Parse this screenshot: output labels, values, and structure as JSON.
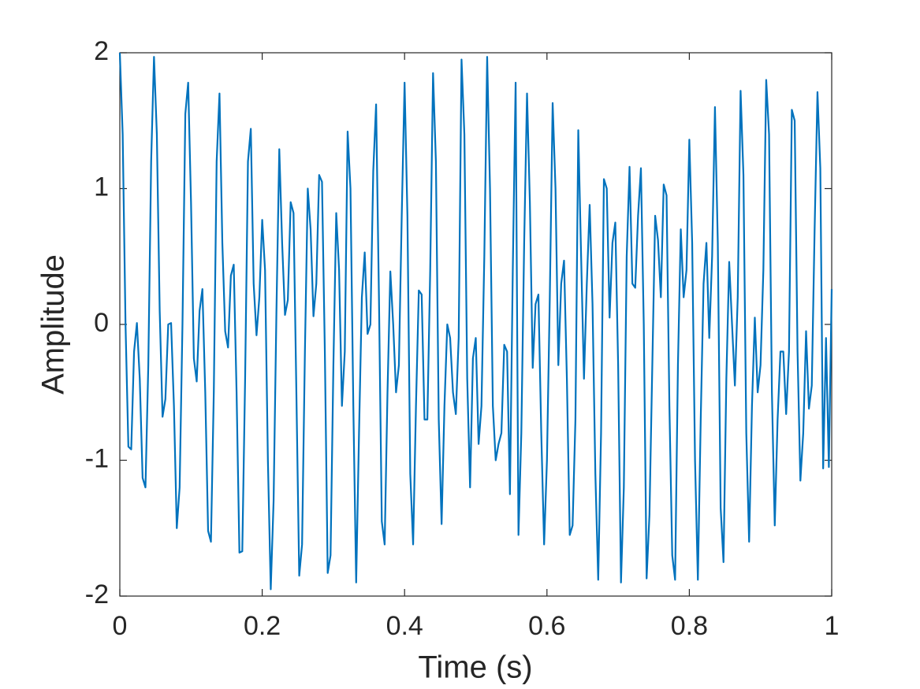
{
  "chart_data": {
    "type": "line",
    "xlabel": "Time (s)",
    "ylabel": "Amplitude",
    "color": "#0072bd",
    "xlim": [
      0,
      1
    ],
    "ylim": [
      -2,
      2
    ],
    "xticks": [
      0,
      0.2,
      0.4,
      0.6,
      0.8,
      1
    ],
    "yticks": [
      -2,
      -1,
      0,
      1,
      2
    ],
    "x": [
      0,
      0.004,
      0.008,
      0.012,
      0.016,
      0.02,
      0.024,
      0.028,
      0.032,
      0.036,
      0.04,
      0.044,
      0.048,
      0.052,
      0.056,
      0.06,
      0.064,
      0.068,
      0.072,
      0.076,
      0.08,
      0.084,
      0.088,
      0.092,
      0.096,
      0.1,
      0.104,
      0.108,
      0.112,
      0.116,
      0.12,
      0.124,
      0.128,
      0.132,
      0.136,
      0.14,
      0.144,
      0.148,
      0.152,
      0.156,
      0.16,
      0.164,
      0.168,
      0.172,
      0.176,
      0.18,
      0.184,
      0.188,
      0.192,
      0.196,
      0.2,
      0.204,
      0.208,
      0.212,
      0.216,
      0.22,
      0.224,
      0.228,
      0.232,
      0.236,
      0.24,
      0.244,
      0.248,
      0.252,
      0.256,
      0.26,
      0.264,
      0.268,
      0.272,
      0.276,
      0.28,
      0.284,
      0.288,
      0.292,
      0.296,
      0.3,
      0.304,
      0.308,
      0.312,
      0.316,
      0.32,
      0.324,
      0.328,
      0.332,
      0.336,
      0.34,
      0.344,
      0.348,
      0.352,
      0.356,
      0.36,
      0.364,
      0.368,
      0.372,
      0.376,
      0.38,
      0.384,
      0.388,
      0.392,
      0.396,
      0.4,
      0.404,
      0.408,
      0.412,
      0.416,
      0.42,
      0.424,
      0.428,
      0.432,
      0.436,
      0.44,
      0.444,
      0.448,
      0.452,
      0.456,
      0.46,
      0.464,
      0.468,
      0.472,
      0.476,
      0.48,
      0.484,
      0.488,
      0.492,
      0.496,
      0.5,
      0.504,
      0.508,
      0.512,
      0.516,
      0.52,
      0.524,
      0.528,
      0.532,
      0.536,
      0.54,
      0.544,
      0.548,
      0.552,
      0.556,
      0.56,
      0.564,
      0.568,
      0.572,
      0.576,
      0.58,
      0.584,
      0.588,
      0.592,
      0.596,
      0.6,
      0.604,
      0.608,
      0.612,
      0.616,
      0.62,
      0.624,
      0.628,
      0.632,
      0.636,
      0.64,
      0.644,
      0.648,
      0.652,
      0.656,
      0.66,
      0.664,
      0.668,
      0.672,
      0.676,
      0.68,
      0.684,
      0.688,
      0.692,
      0.696,
      0.7,
      0.704,
      0.708,
      0.712,
      0.716,
      0.72,
      0.724,
      0.728,
      0.732,
      0.736,
      0.74,
      0.744,
      0.748,
      0.752,
      0.756,
      0.76,
      0.764,
      0.768,
      0.772,
      0.776,
      0.78,
      0.784,
      0.788,
      0.792,
      0.796,
      0.8,
      0.804,
      0.808,
      0.812,
      0.816,
      0.82,
      0.824,
      0.828,
      0.832,
      0.836,
      0.84,
      0.844,
      0.848,
      0.852,
      0.856,
      0.86,
      0.864,
      0.868,
      0.872,
      0.876,
      0.88,
      0.884,
      0.888,
      0.892,
      0.896,
      0.9,
      0.904,
      0.908,
      0.912,
      0.916,
      0.92,
      0.924,
      0.928,
      0.932,
      0.936,
      0.94,
      0.944,
      0.948,
      0.952,
      0.956,
      0.96,
      0.964,
      0.968,
      0.972,
      0.976,
      0.98,
      0.984,
      0.988,
      0.992,
      0.996,
      1
    ],
    "values": [
      2.0,
      1.4,
      0.0,
      -0.9,
      -0.92,
      -0.2,
      0.01,
      -0.4,
      -1.13,
      -1.2,
      -0.3,
      1.2,
      1.97,
      1.4,
      0.1,
      -0.68,
      -0.55,
      0.0,
      0.01,
      -0.6,
      -1.5,
      -1.2,
      0.0,
      1.55,
      1.78,
      0.9,
      -0.25,
      -0.42,
      0.1,
      0.26,
      -0.5,
      -1.52,
      -1.6,
      -0.5,
      1.2,
      1.7,
      0.6,
      -0.05,
      -0.17,
      0.36,
      0.44,
      -0.5,
      -1.68,
      -1.67,
      -0.4,
      1.2,
      1.44,
      0.3,
      -0.08,
      0.2,
      0.77,
      0.4,
      -1.0,
      -1.95,
      -1.3,
      0.1,
      1.29,
      0.6,
      0.07,
      0.18,
      0.9,
      0.82,
      -0.5,
      -1.85,
      -1.62,
      -0.2,
      1.0,
      0.7,
      0.06,
      0.3,
      1.1,
      1.05,
      -0.2,
      -1.83,
      -1.7,
      -0.3,
      0.82,
      0.4,
      -0.6,
      -0.2,
      1.42,
      1.0,
      -0.6,
      -1.9,
      -0.8,
      0.2,
      0.53,
      -0.07,
      0.0,
      1.13,
      1.62,
      0.2,
      -1.45,
      -1.62,
      -0.5,
      0.39,
      0.0,
      -0.5,
      -0.3,
      0.8,
      1.78,
      0.8,
      -1.1,
      -1.62,
      -0.6,
      0.25,
      0.22,
      -0.7,
      -0.7,
      0.4,
      1.85,
      1.2,
      -0.7,
      -1.47,
      -0.6,
      0.0,
      -0.1,
      -0.5,
      -0.66,
      -0.1,
      1.95,
      1.4,
      -0.4,
      -1.2,
      -0.25,
      -0.1,
      -0.88,
      -0.6,
      0.5,
      1.97,
      1.0,
      -0.6,
      -1.0,
      -0.88,
      -0.8,
      -0.15,
      -0.2,
      -1.25,
      0.4,
      1.78,
      -1.55,
      -0.8,
      0.6,
      1.7,
      0.9,
      -0.32,
      0.15,
      0.22,
      -0.8,
      -1.62,
      -1.0,
      0.2,
      1.63,
      1.0,
      -0.3,
      0.3,
      0.47,
      -0.4,
      -1.55,
      -1.48,
      -0.7,
      1.43,
      0.5,
      -0.4,
      0.3,
      0.88,
      0.15,
      -1.1,
      -1.88,
      -0.8,
      1.07,
      1.0,
      0.05,
      0.6,
      0.75,
      -0.3,
      -1.9,
      -1.2,
      0.5,
      1.16,
      0.3,
      0.27,
      0.8,
      1.15,
      0.0,
      -1.87,
      -1.4,
      -0.3,
      0.8,
      0.62,
      0.2,
      1.03,
      0.95,
      -0.6,
      -1.7,
      -1.88,
      -0.3,
      0.7,
      0.2,
      0.4,
      1.36,
      0.6,
      -1.0,
      -1.88,
      -0.7,
      0.3,
      0.6,
      -0.1,
      0.5,
      1.6,
      0.6,
      -1.35,
      -1.75,
      -0.4,
      0.46,
      0.0,
      -0.45,
      0.2,
      1.72,
      1.1,
      -0.8,
      -1.6,
      -0.6,
      0.05,
      -0.5,
      -0.3,
      0.4,
      1.8,
      1.4,
      -0.5,
      -1.48,
      -0.7,
      -0.2,
      -0.2,
      -0.66,
      -0.2,
      1.58,
      1.5,
      -0.2,
      -1.15,
      -0.8,
      -0.05,
      -0.62,
      -0.45,
      0.7,
      1.71,
      1.15,
      -1.06,
      -0.1,
      -1.05,
      0.26
    ]
  }
}
